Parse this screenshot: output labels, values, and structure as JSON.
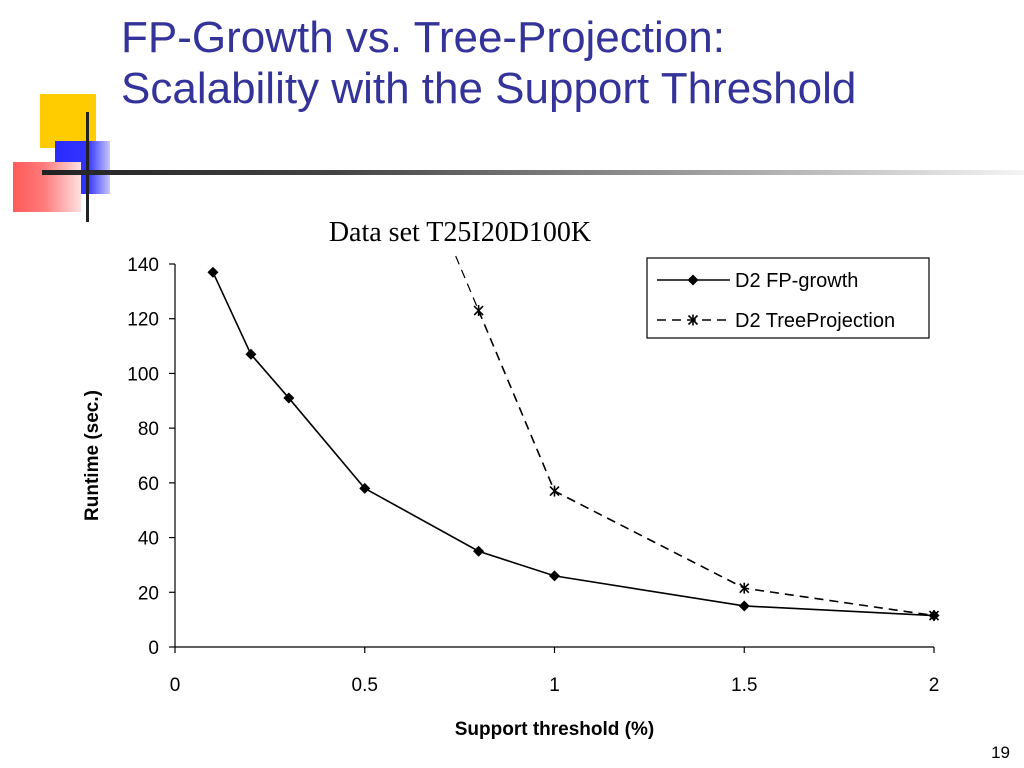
{
  "slide": {
    "title_line1": "FP-Growth vs. Tree-Projection:",
    "title_line2": "Scalability with the Support Threshold",
    "page_number": "19"
  },
  "chart_data": {
    "type": "line",
    "title": "Data set T25I20D100K",
    "xlabel": "Support threshold (%)",
    "ylabel": "Runtime (sec.)",
    "xlim": [
      0,
      2
    ],
    "ylim": [
      0,
      140
    ],
    "x_ticks": [
      "0",
      "0.5",
      "1",
      "1.5",
      "2"
    ],
    "y_ticks": [
      "0",
      "20",
      "40",
      "60",
      "80",
      "100",
      "120",
      "140"
    ],
    "legend_position": "top-right",
    "grid": false,
    "series": [
      {
        "name": "D2 FP-growth",
        "style": "solid",
        "marker": "diamond",
        "color": "#000000",
        "x": [
          0.1,
          0.2,
          0.3,
          0.5,
          0.8,
          1,
          1.5,
          2
        ],
        "y": [
          137,
          107,
          91,
          58,
          35,
          26,
          15,
          11.5
        ]
      },
      {
        "name": "D2 TreeProjection",
        "style": "dashed",
        "marker": "star",
        "color": "#000000",
        "x": [
          0.8,
          1,
          1.5,
          2
        ],
        "y": [
          123,
          57,
          21.5,
          11.5
        ],
        "offscale_lead_in": true
      }
    ]
  }
}
